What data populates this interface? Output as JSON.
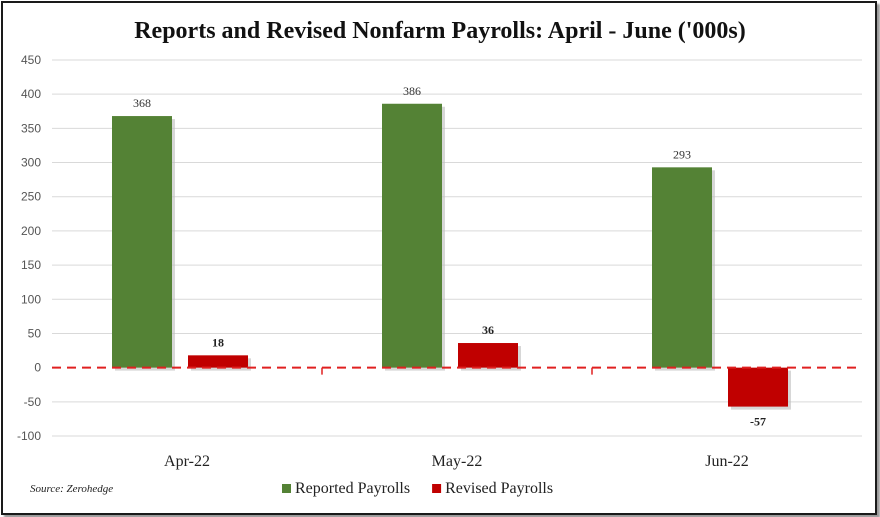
{
  "chart_data": {
    "type": "bar",
    "title": "Reports and Revised Nonfarm Payrolls: April - June ('000s)",
    "categories": [
      "Apr-22",
      "May-22",
      "Jun-22"
    ],
    "series": [
      {
        "name": "Reported Payrolls",
        "values": [
          368,
          386,
          293
        ],
        "color": "#548235"
      },
      {
        "name": "Revised Payrolls",
        "values": [
          18,
          36,
          -57
        ],
        "color": "#c00000"
      }
    ],
    "ylim": [
      -100,
      450
    ],
    "yticks": [
      450,
      400,
      350,
      300,
      250,
      200,
      150,
      100,
      50,
      0,
      -50,
      -100
    ],
    "grid": true,
    "zero_line_color": "#e02020",
    "legend_position": "bottom-center",
    "source": "Source: Zerohedge",
    "xlabel": "",
    "ylabel": ""
  }
}
